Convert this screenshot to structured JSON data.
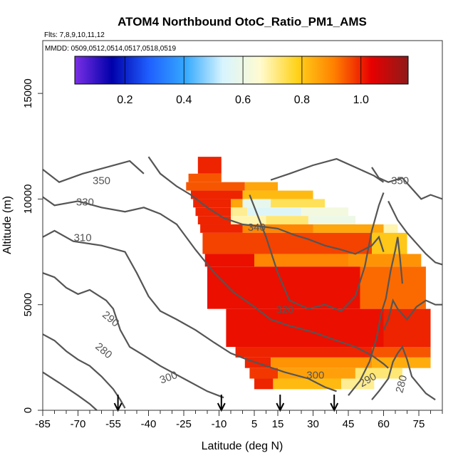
{
  "chart_data": {
    "type": "heatmap",
    "title": "ATOM4 Northbound OtoC_Ratio_PM1_AMS",
    "flights_label": "Flts: 7,8,9,10,11,12",
    "dates_label": "MMDD: 0509,0512,0514,0517,0518,0519",
    "xlabel": "Latitude (deg N)",
    "ylabel": "Altitude (m)",
    "xlim": [
      -85,
      85
    ],
    "ylim": [
      0,
      17500
    ],
    "x_ticks": [
      -85,
      -70,
      -55,
      -40,
      -25,
      -10,
      5,
      15,
      30,
      45,
      60,
      75
    ],
    "y_ticks": [
      0,
      5000,
      10000,
      15000
    ],
    "colorbar": {
      "range": [
        0.03,
        1.16
      ],
      "tick_values": [
        0.2,
        0.4,
        0.6,
        0.8,
        1.0
      ],
      "tick_labels": [
        "0.2",
        "0.4",
        "0.6",
        "0.8",
        "1.0"
      ],
      "colors": [
        "#7b2fe6",
        "#0000aa",
        "#1f5fff",
        "#35aaff",
        "#d8f4ff",
        "#fffbd0",
        "#ffd21a",
        "#ff8000",
        "#e80000",
        "#8e1a1a"
      ]
    },
    "contour_labels": [
      "350",
      "330",
      "310",
      "290",
      "280",
      "300",
      "340",
      "320",
      "300",
      "290",
      "280",
      "350"
    ],
    "flight_markers_lat": [
      -53,
      -9,
      16,
      39
    ],
    "cells": [
      {
        "lat": [
          -19,
          -9
        ],
        "alt": [
          11200,
          12000
        ],
        "v": 1.0
      },
      {
        "lat": [
          -23,
          -9
        ],
        "alt": [
          10800,
          11200
        ],
        "v": 0.95
      },
      {
        "lat": [
          -24,
          1
        ],
        "alt": [
          10400,
          10800
        ],
        "v": 0.95
      },
      {
        "lat": [
          1,
          15
        ],
        "alt": [
          10400,
          10800
        ],
        "v": 0.85
      },
      {
        "lat": [
          -22,
          0
        ],
        "alt": [
          10000,
          10400
        ],
        "v": 1.0
      },
      {
        "lat": [
          0,
          30
        ],
        "alt": [
          10000,
          10400
        ],
        "v": 0.82
      },
      {
        "lat": [
          -21,
          -5
        ],
        "alt": [
          9600,
          10000
        ],
        "v": 1.0
      },
      {
        "lat": [
          -5,
          0
        ],
        "alt": [
          9600,
          10000
        ],
        "v": 0.85
      },
      {
        "lat": [
          0,
          12
        ],
        "alt": [
          9600,
          10000
        ],
        "v": 0.58
      },
      {
        "lat": [
          12,
          35
        ],
        "alt": [
          9600,
          10000
        ],
        "v": 0.74
      },
      {
        "lat": [
          -20,
          -5
        ],
        "alt": [
          9200,
          9600
        ],
        "v": 1.0
      },
      {
        "lat": [
          -5,
          2
        ],
        "alt": [
          9200,
          9600
        ],
        "v": 0.7
      },
      {
        "lat": [
          2,
          25
        ],
        "alt": [
          9200,
          9600
        ],
        "v": 0.55
      },
      {
        "lat": [
          25,
          45
        ],
        "alt": [
          9200,
          9600
        ],
        "v": 0.62
      },
      {
        "lat": [
          -19,
          -5
        ],
        "alt": [
          8800,
          9200
        ],
        "v": 1.0
      },
      {
        "lat": [
          -5,
          10
        ],
        "alt": [
          8800,
          9200
        ],
        "v": 0.68
      },
      {
        "lat": [
          10,
          28
        ],
        "alt": [
          8800,
          9200
        ],
        "v": 0.72
      },
      {
        "lat": [
          28,
          48
        ],
        "alt": [
          8800,
          9200
        ],
        "v": 0.6
      },
      {
        "lat": [
          -18,
          0
        ],
        "alt": [
          8400,
          8800
        ],
        "v": 1.0
      },
      {
        "lat": [
          0,
          30
        ],
        "alt": [
          8400,
          8800
        ],
        "v": 0.9
      },
      {
        "lat": [
          30,
          60
        ],
        "alt": [
          8400,
          8800
        ],
        "v": 0.85
      },
      {
        "lat": [
          60,
          66
        ],
        "alt": [
          8400,
          8800
        ],
        "v": 0.68
      },
      {
        "lat": [
          -17,
          55
        ],
        "alt": [
          7400,
          8400
        ],
        "v": 0.97
      },
      {
        "lat": [
          55,
          70
        ],
        "alt": [
          7400,
          8400
        ],
        "v": 0.8
      },
      {
        "lat": [
          -16,
          5
        ],
        "alt": [
          6800,
          7400
        ],
        "v": 1.02
      },
      {
        "lat": [
          5,
          45
        ],
        "alt": [
          6800,
          7400
        ],
        "v": 0.9
      },
      {
        "lat": [
          45,
          76
        ],
        "alt": [
          6800,
          7400
        ],
        "v": 0.88
      },
      {
        "lat": [
          -15,
          50
        ],
        "alt": [
          4800,
          6800
        ],
        "v": 1.02
      },
      {
        "lat": [
          50,
          78
        ],
        "alt": [
          4800,
          6800
        ],
        "v": 0.93
      },
      {
        "lat": [
          -7,
          60
        ],
        "alt": [
          3000,
          4800
        ],
        "v": 1.02
      },
      {
        "lat": [
          60,
          80
        ],
        "alt": [
          3000,
          4800
        ],
        "v": 1.0
      },
      {
        "lat": [
          -3,
          55
        ],
        "alt": [
          2500,
          3000
        ],
        "v": 1.0
      },
      {
        "lat": [
          55,
          80
        ],
        "alt": [
          2500,
          3000
        ],
        "v": 0.95
      },
      {
        "lat": [
          1,
          12
        ],
        "alt": [
          2000,
          2500
        ],
        "v": 1.0
      },
      {
        "lat": [
          12,
          55
        ],
        "alt": [
          2000,
          2500
        ],
        "v": 0.88
      },
      {
        "lat": [
          55,
          80
        ],
        "alt": [
          2000,
          2500
        ],
        "v": 0.84
      },
      {
        "lat": [
          3,
          15
        ],
        "alt": [
          1500,
          2000
        ],
        "v": 0.98
      },
      {
        "lat": [
          15,
          48
        ],
        "alt": [
          1500,
          2000
        ],
        "v": 0.86
      },
      {
        "lat": [
          48,
          68
        ],
        "alt": [
          1500,
          2000
        ],
        "v": 0.72
      },
      {
        "lat": [
          5,
          13
        ],
        "alt": [
          1000,
          1500
        ],
        "v": 1.0
      },
      {
        "lat": [
          13,
          42
        ],
        "alt": [
          1000,
          1500
        ],
        "v": 0.82
      },
      {
        "lat": [
          42,
          56
        ],
        "alt": [
          1000,
          1500
        ],
        "v": 0.7
      }
    ]
  }
}
